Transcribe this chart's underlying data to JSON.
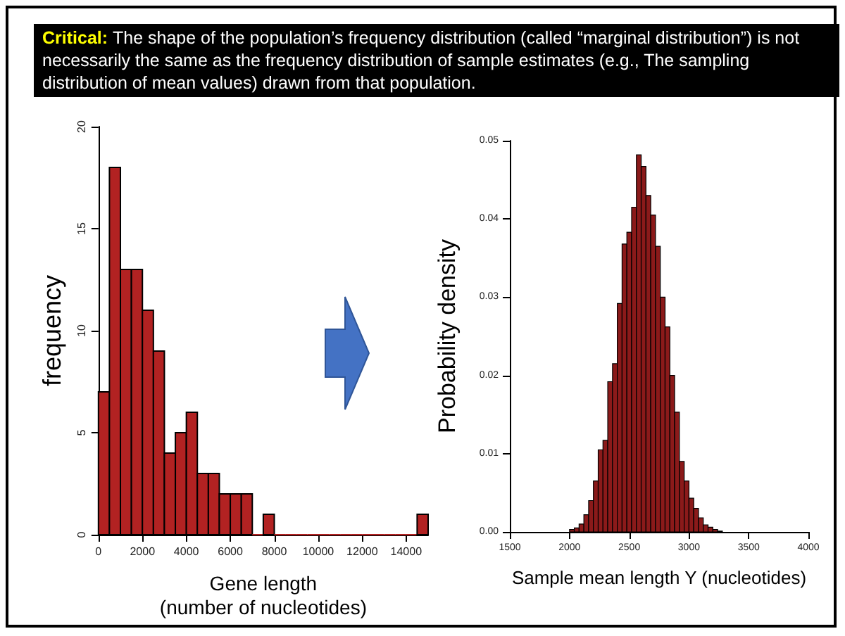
{
  "chart_data": [
    {
      "type": "other",
      "annotations": [
        "Critical:",
        "The shape of the population’s frequency distribution (called “marginal distribution”) is not necessarily the same as the frequency distribution of sample estimates (e.g., The sampling distribution of mean values) drawn from that population."
      ]
    },
    {
      "type": "histogram",
      "xlabel": "Gene length\n(number of nucleotides)",
      "ylabel": "frequency",
      "color": "#b22222",
      "bins": [
        0,
        500,
        1000,
        1500,
        2000,
        2500,
        3000,
        3500,
        4000,
        4500,
        5000,
        5500,
        6000,
        6500,
        7000,
        7500,
        8000,
        8500,
        9000,
        9500,
        10000,
        10500,
        11000,
        11500,
        12000,
        12500,
        13000,
        13500,
        14000,
        14500,
        15000
      ],
      "values": [
        7,
        18,
        13,
        13,
        11,
        9,
        4,
        5,
        6,
        3,
        3,
        2,
        2,
        2,
        0,
        1,
        0,
        0,
        0,
        0,
        0,
        0,
        0,
        0,
        0,
        0,
        0,
        0,
        0,
        1
      ],
      "xlim": [
        0,
        15000
      ],
      "xticks": [
        0,
        2000,
        4000,
        6000,
        8000,
        10000,
        12000,
        14000
      ],
      "ylim": [
        0,
        20
      ],
      "yticks": [
        0,
        5,
        10,
        15,
        20
      ]
    },
    {
      "type": "histogram",
      "xlabel": "Sample mean length Y (nucleotides)",
      "ylabel": "Probability density",
      "color": "#8b1a1a",
      "bins": [
        2000,
        2040,
        2080,
        2120,
        2160,
        2200,
        2240,
        2280,
        2320,
        2360,
        2400,
        2440,
        2480,
        2520,
        2560,
        2600,
        2640,
        2680,
        2720,
        2760,
        2800,
        2840,
        2880,
        2920,
        2960,
        3000,
        3040,
        3080,
        3120,
        3160,
        3200,
        3240,
        3280
      ],
      "values": [
        0.0003,
        0.0005,
        0.001,
        0.0022,
        0.004,
        0.0065,
        0.0105,
        0.0117,
        0.0192,
        0.0215,
        0.0292,
        0.0368,
        0.0383,
        0.0415,
        0.0482,
        0.0467,
        0.043,
        0.0405,
        0.0365,
        0.03,
        0.0262,
        0.02,
        0.0153,
        0.009,
        0.0065,
        0.0043,
        0.003,
        0.0018,
        0.0009,
        0.0006,
        0.0003,
        0.0001
      ],
      "xlim": [
        1500,
        4000
      ],
      "xticks": [
        1500,
        2000,
        2500,
        3000,
        3500,
        4000
      ],
      "ylim": [
        0,
        0.05
      ],
      "yticks": [
        {
          "value": 0,
          "label": "0.00"
        },
        {
          "value": 0.01,
          "label": "0.01"
        },
        {
          "value": 0.02,
          "label": "0.02"
        },
        {
          "value": 0.03,
          "label": "0.03"
        },
        {
          "value": 0.04,
          "label": "0.04"
        },
        {
          "value": 0.05,
          "label": "0.05"
        }
      ]
    }
  ]
}
